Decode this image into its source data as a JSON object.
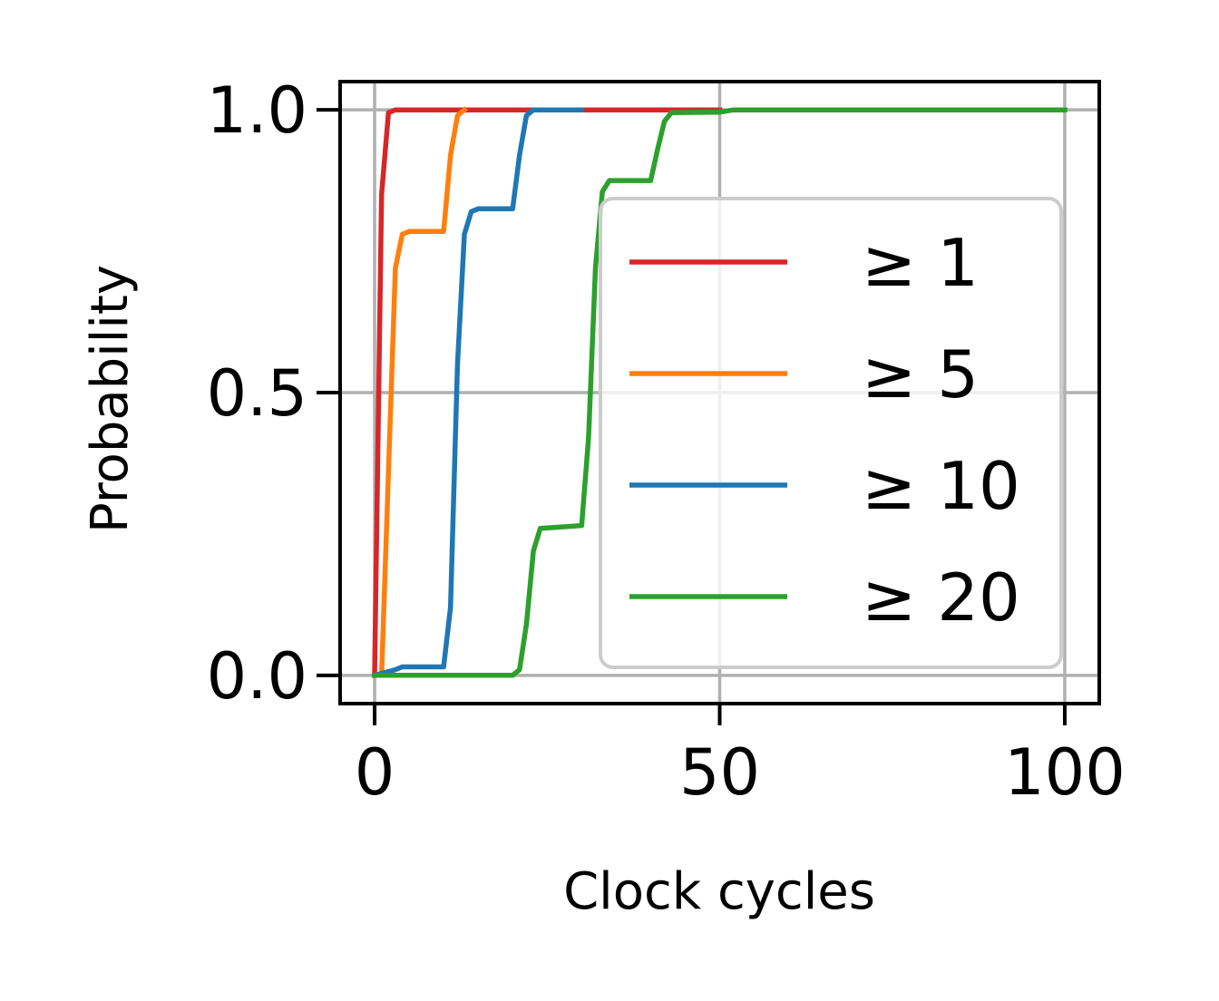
{
  "chart_data": {
    "type": "line",
    "title": "",
    "xlabel": "Clock cycles",
    "ylabel": "Probability",
    "xlim": [
      -5,
      105
    ],
    "ylim": [
      -0.05,
      1.05
    ],
    "xticks": [
      0,
      50,
      100
    ],
    "xtick_labels": [
      "0",
      "50",
      "100"
    ],
    "yticks": [
      0.0,
      0.5,
      1.0
    ],
    "ytick_labels": [
      "0.0",
      "0.5",
      "1.0"
    ],
    "grid": true,
    "legend_position": "center-right",
    "series": [
      {
        "name": "≥ 1",
        "color": "#d62728",
        "x": [
          0,
          1,
          2,
          3,
          50
        ],
        "y": [
          0.0,
          0.85,
          0.995,
          1.0,
          1.0
        ]
      },
      {
        "name": "≥ 5",
        "color": "#ff7f0e",
        "x": [
          1,
          3,
          4,
          5,
          10,
          11,
          12,
          13
        ],
        "y": [
          0.0,
          0.72,
          0.78,
          0.785,
          0.785,
          0.92,
          0.99,
          1.0
        ]
      },
      {
        "name": "≥ 10",
        "color": "#1f77b4",
        "x": [
          0,
          3,
          4,
          10,
          11,
          12,
          13,
          14,
          15,
          20,
          21,
          22,
          23,
          30
        ],
        "y": [
          0.0,
          0.01,
          0.015,
          0.015,
          0.12,
          0.55,
          0.78,
          0.82,
          0.825,
          0.825,
          0.92,
          0.99,
          1.0,
          1.0
        ]
      },
      {
        "name": "≥ 20",
        "color": "#2ca02c",
        "x": [
          0,
          12,
          20,
          21,
          22,
          23,
          24,
          30,
          31,
          32,
          33,
          34,
          40,
          41,
          42,
          43,
          50,
          52,
          100
        ],
        "y": [
          0.0,
          0.0,
          0.0,
          0.01,
          0.09,
          0.22,
          0.26,
          0.265,
          0.42,
          0.72,
          0.855,
          0.875,
          0.875,
          0.93,
          0.98,
          0.995,
          0.996,
          1.0,
          1.0
        ]
      }
    ]
  }
}
